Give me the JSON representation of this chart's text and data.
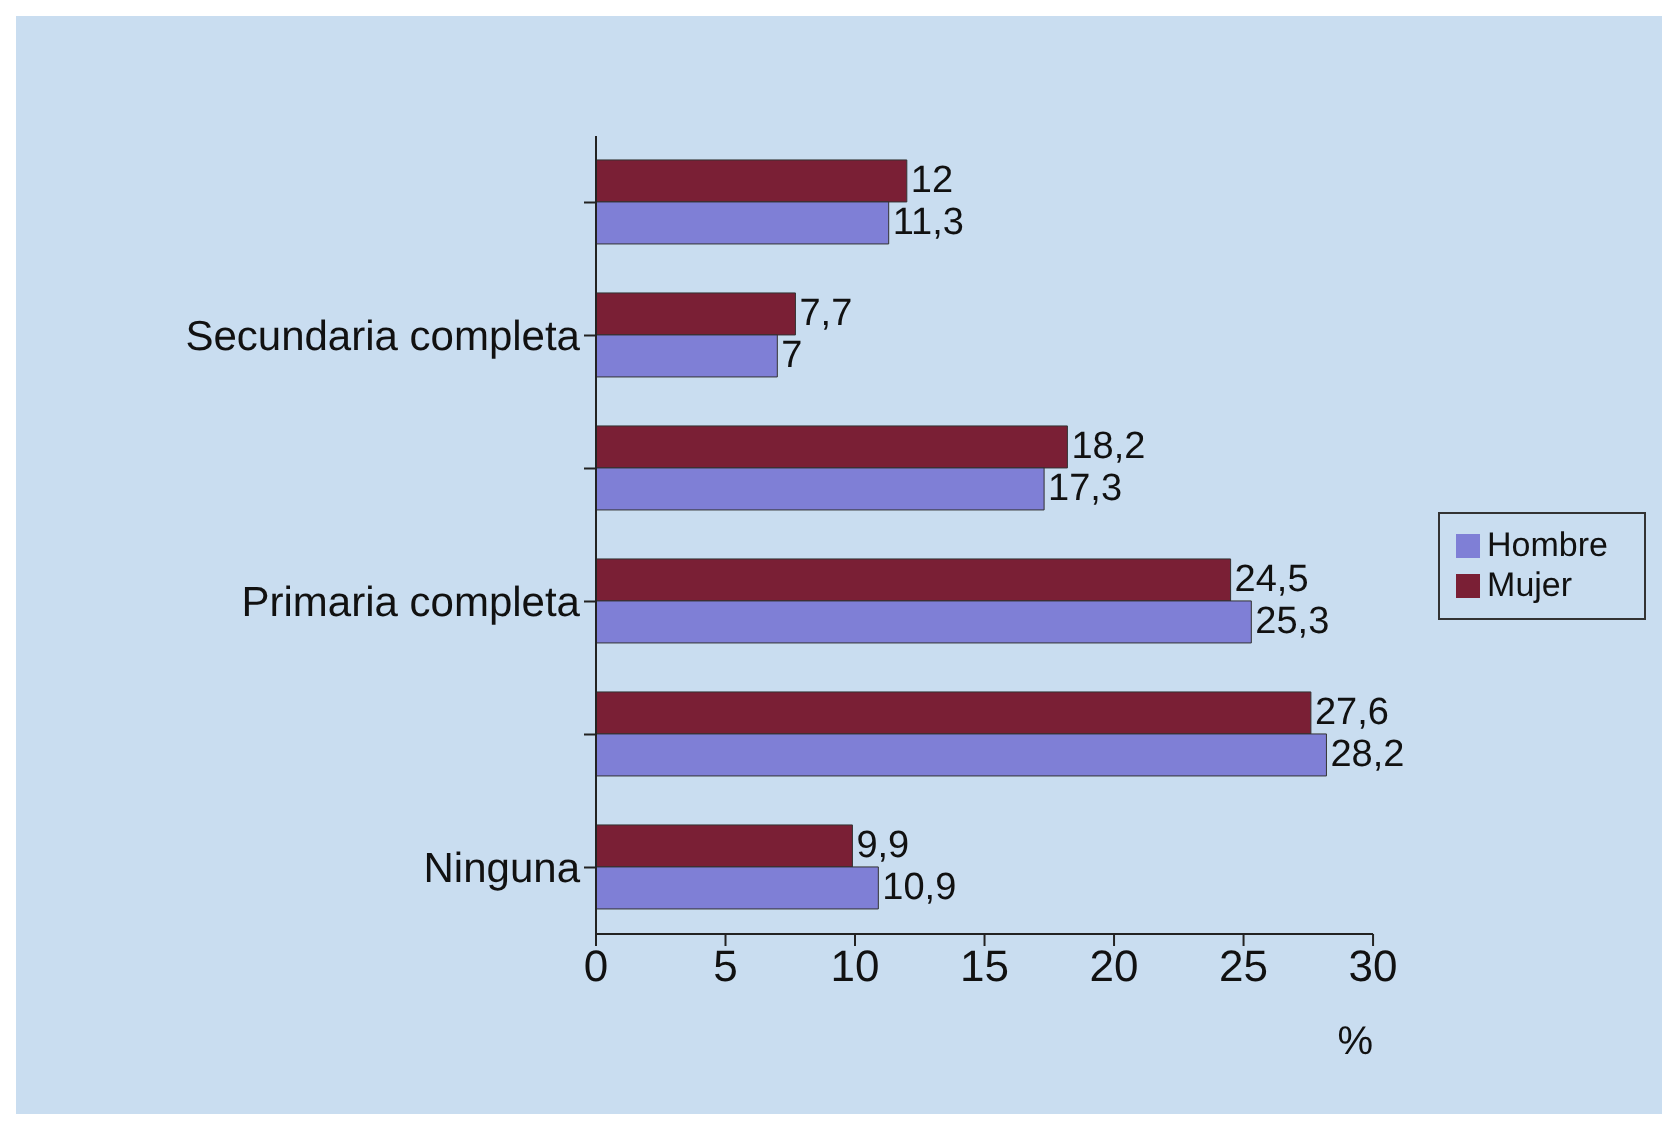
{
  "chart_data": {
    "type": "bar",
    "orientation": "horizontal",
    "categories": [
      null,
      "Secundaria completa",
      null,
      "Primaria completa",
      null,
      "Ninguna"
    ],
    "series": [
      {
        "name": "Mujer",
        "color": "#7a1f35",
        "values": [
          12,
          7.7,
          18.2,
          24.5,
          27.6,
          9.9
        ],
        "value_labels": [
          "12",
          "7,7",
          "18,2",
          "24,5",
          "27,6",
          "9,9"
        ]
      },
      {
        "name": "Hombre",
        "color": "#7f7fd6",
        "values": [
          11.3,
          7,
          17.3,
          25.3,
          28.2,
          10.9
        ],
        "value_labels": [
          "11,3",
          "7",
          "17,3",
          "25,3",
          "28,2",
          "10,9"
        ]
      }
    ],
    "xlim": [
      0,
      30
    ],
    "xticks": [
      0,
      5,
      10,
      15,
      20,
      25,
      30
    ],
    "xlabel": "%",
    "legend": "right",
    "grid": false
  }
}
